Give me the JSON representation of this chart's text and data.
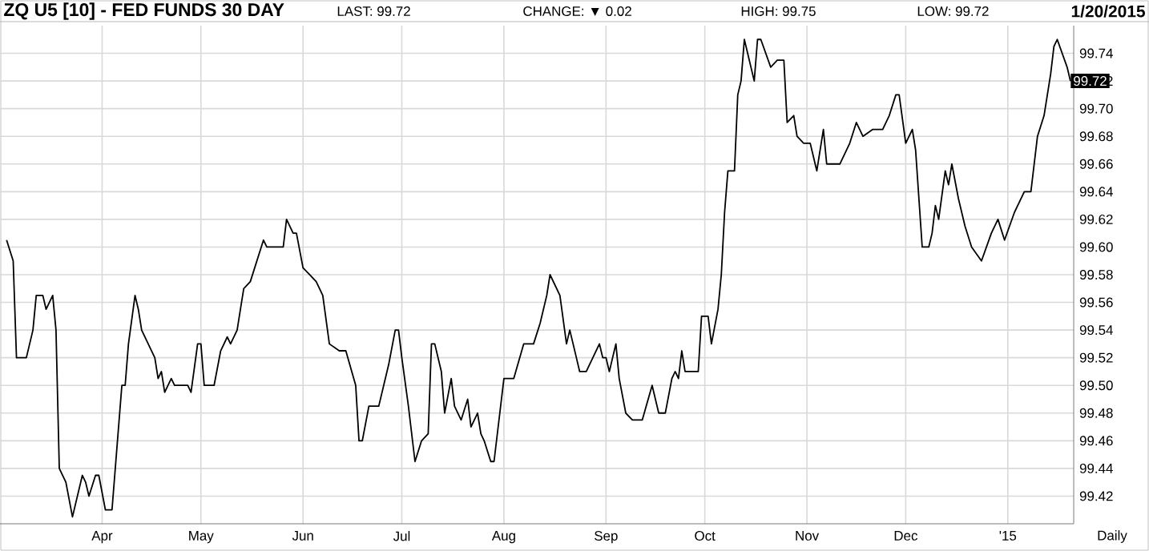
{
  "chart_data": {
    "type": "line",
    "title": "ZQ U5 [10] - FED FUNDS 30 DAY",
    "annotations": [
      "LAST: 99.72",
      "CHANGE: ▼ 0.02",
      "HIGH: 99.75",
      "LOW: 99.72",
      "1/20/2015",
      {
        "text": "99.72",
        "x": "2015-01-20",
        "y": 99.72
      },
      "Daily"
    ],
    "x": [
      "2014-03-03",
      "2014-03-05",
      "2014-03-06",
      "2014-03-09",
      "2014-03-11",
      "2014-03-12",
      "2014-03-14",
      "2014-03-15",
      "2014-03-17",
      "2014-03-18",
      "2014-03-19",
      "2014-03-21",
      "2014-03-23",
      "2014-03-26",
      "2014-03-27",
      "2014-03-28",
      "2014-03-30",
      "2014-03-31",
      "2014-04-02",
      "2014-04-04",
      "2014-04-05",
      "2014-04-07",
      "2014-04-08",
      "2014-04-09",
      "2014-04-11",
      "2014-04-12",
      "2014-04-13",
      "2014-04-15",
      "2014-04-17",
      "2014-04-18",
      "2014-04-19",
      "2014-04-20",
      "2014-04-22",
      "2014-04-23",
      "2014-04-27",
      "2014-04-28",
      "2014-04-30",
      "2014-05-01",
      "2014-05-02",
      "2014-05-05",
      "2014-05-07",
      "2014-05-09",
      "2014-05-10",
      "2014-05-12",
      "2014-05-13",
      "2014-05-14",
      "2014-05-16",
      "2014-05-20",
      "2014-05-21",
      "2014-05-23",
      "2014-05-26",
      "2014-05-27",
      "2014-05-29",
      "2014-05-30",
      "2014-06-01",
      "2014-06-03",
      "2014-06-05",
      "2014-06-07",
      "2014-06-09",
      "2014-06-12",
      "2014-06-14",
      "2014-06-17",
      "2014-06-18",
      "2014-06-19",
      "2014-06-21",
      "2014-06-24",
      "2014-06-27",
      "2014-06-29",
      "2014-06-30",
      "2014-07-01",
      "2014-07-03",
      "2014-07-05",
      "2014-07-07",
      "2014-07-09",
      "2014-07-10",
      "2014-07-11",
      "2014-07-13",
      "2014-07-14",
      "2014-07-16",
      "2014-07-17",
      "2014-07-19",
      "2014-07-21",
      "2014-07-22",
      "2014-07-24",
      "2014-07-25",
      "2014-07-26",
      "2014-07-28",
      "2014-07-29",
      "2014-08-01",
      "2014-08-04",
      "2014-08-07",
      "2014-08-10",
      "2014-08-12",
      "2014-08-14",
      "2014-08-15",
      "2014-08-18",
      "2014-08-20",
      "2014-08-21",
      "2014-08-23",
      "2014-08-24",
      "2014-08-26",
      "2014-08-28",
      "2014-08-30",
      "2014-08-31",
      "2014-09-01",
      "2014-09-02",
      "2014-09-04",
      "2014-09-05",
      "2014-09-07",
      "2014-09-09",
      "2014-09-12",
      "2014-09-15",
      "2014-09-17",
      "2014-09-19",
      "2014-09-21",
      "2014-09-22",
      "2014-09-23",
      "2014-09-24",
      "2014-09-25",
      "2014-09-29",
      "2014-09-30",
      "2014-10-02",
      "2014-10-03",
      "2014-10-05",
      "2014-10-06",
      "2014-10-07",
      "2014-10-08",
      "2014-10-10",
      "2014-10-11",
      "2014-10-12",
      "2014-10-13",
      "2014-10-14",
      "2014-10-16",
      "2014-10-17",
      "2014-10-18",
      "2014-10-21",
      "2014-10-23",
      "2014-10-25",
      "2014-10-26",
      "2014-10-28",
      "2014-10-29",
      "2014-10-31",
      "2014-11-02",
      "2014-11-04",
      "2014-11-06",
      "2014-11-07",
      "2014-11-11",
      "2014-11-14",
      "2014-11-16",
      "2014-11-18",
      "2014-11-21",
      "2014-11-24",
      "2014-11-26",
      "2014-11-28",
      "2014-11-29",
      "2014-12-01",
      "2014-12-03",
      "2014-12-04",
      "2014-12-06",
      "2014-12-08",
      "2014-12-09",
      "2014-12-10",
      "2014-12-11",
      "2014-12-13",
      "2014-12-14",
      "2014-12-15",
      "2014-12-17",
      "2014-12-19",
      "2014-12-21",
      "2014-12-24",
      "2014-12-27",
      "2014-12-29",
      "2014-12-31",
      "2015-01-03",
      "2015-01-06",
      "2015-01-08",
      "2015-01-10",
      "2015-01-12",
      "2015-01-14",
      "2015-01-15",
      "2015-01-16",
      "2015-01-19",
      "2015-01-20"
    ],
    "series": [
      {
        "color": "#000000",
        "values": [
          99.605,
          99.59,
          99.52,
          99.52,
          99.54,
          99.565,
          99.565,
          99.555,
          99.565,
          99.54,
          99.44,
          99.43,
          99.405,
          99.435,
          99.43,
          99.42,
          99.435,
          99.435,
          99.41,
          99.41,
          99.44,
          99.5,
          99.5,
          99.53,
          99.565,
          99.555,
          99.54,
          99.53,
          99.52,
          99.505,
          99.51,
          99.495,
          99.505,
          99.5,
          99.5,
          99.495,
          99.53,
          99.53,
          99.5,
          99.5,
          99.525,
          99.535,
          99.53,
          99.54,
          99.555,
          99.57,
          99.575,
          99.605,
          99.6,
          99.6,
          99.6,
          99.62,
          99.61,
          99.61,
          99.585,
          99.58,
          99.575,
          99.565,
          99.53,
          99.525,
          99.525,
          99.5,
          99.46,
          99.46,
          99.485,
          99.485,
          99.515,
          99.54,
          99.54,
          99.52,
          99.485,
          99.445,
          99.46,
          99.465,
          99.53,
          99.53,
          99.51,
          99.48,
          99.505,
          99.485,
          99.475,
          99.49,
          99.47,
          99.48,
          99.465,
          99.46,
          99.445,
          99.445,
          99.505,
          99.505,
          99.53,
          99.53,
          99.545,
          99.565,
          99.58,
          99.565,
          99.53,
          99.54,
          99.52,
          99.51,
          99.51,
          99.52,
          99.53,
          99.52,
          99.52,
          99.51,
          99.53,
          99.505,
          99.48,
          99.475,
          99.475,
          99.5,
          99.48,
          99.48,
          99.505,
          99.51,
          99.505,
          99.525,
          99.51,
          99.51,
          99.55,
          99.55,
          99.53,
          99.555,
          99.58,
          99.625,
          99.655,
          99.655,
          99.71,
          99.72,
          99.75,
          99.74,
          99.72,
          99.75,
          99.75,
          99.73,
          99.735,
          99.735,
          99.69,
          99.695,
          99.68,
          99.675,
          99.675,
          99.655,
          99.685,
          99.66,
          99.66,
          99.675,
          99.69,
          99.68,
          99.685,
          99.685,
          99.695,
          99.71,
          99.71,
          99.675,
          99.685,
          99.67,
          99.6,
          99.6,
          99.61,
          99.63,
          99.62,
          99.655,
          99.645,
          99.66,
          99.635,
          99.615,
          99.6,
          99.59,
          99.61,
          99.62,
          99.605,
          99.625,
          99.64,
          99.64,
          99.68,
          99.695,
          99.725,
          99.745,
          99.75,
          99.73,
          99.72
        ]
      }
    ],
    "xlim": [
      "2014-03-01",
      "2015-01-21"
    ],
    "xticks": [
      {
        "value": "2014-04-01",
        "label": "Apr"
      },
      {
        "value": "2014-05-01",
        "label": "May"
      },
      {
        "value": "2014-06-01",
        "label": "Jun"
      },
      {
        "value": "2014-07-01",
        "label": "Jul"
      },
      {
        "value": "2014-08-01",
        "label": "Aug"
      },
      {
        "value": "2014-09-01",
        "label": "Sep"
      },
      {
        "value": "2014-10-01",
        "label": "Oct"
      },
      {
        "value": "2014-11-01",
        "label": "Nov"
      },
      {
        "value": "2014-12-01",
        "label": "Dec"
      },
      {
        "value": "2015-01-01",
        "label": "'15"
      }
    ],
    "ylim": [
      99.4,
      99.76
    ],
    "yticks": [
      99.42,
      99.44,
      99.46,
      99.48,
      {
        "value": 99.5,
        "label": "99.50"
      },
      99.52,
      99.54,
      99.56,
      99.58,
      {
        "value": 99.6,
        "label": "99.60"
      },
      99.62,
      99.64,
      99.66,
      99.68,
      {
        "value": 99.7,
        "label": "99.70"
      },
      99.72,
      99.74
    ],
    "grid": true
  }
}
